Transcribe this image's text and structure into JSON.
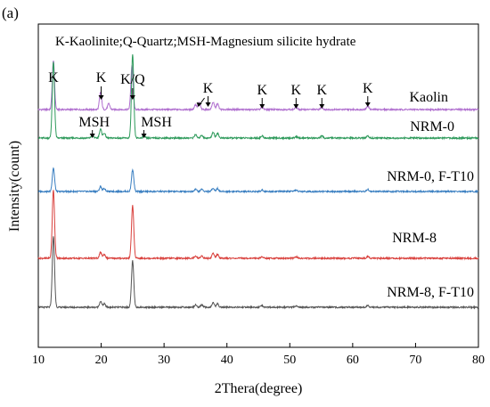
{
  "panel_label": "(a)",
  "chart_data": {
    "type": "line",
    "legend_text": "K-Kaolinite;Q-Quartz;MSH-Magnesium silicite hydrate",
    "xlabel": "2Thera(degree)",
    "ylabel": "Intensity(count)",
    "xlim": [
      10,
      80
    ],
    "xticks": [
      10,
      20,
      30,
      40,
      50,
      60,
      70,
      80
    ],
    "y_ticks_shown": false,
    "grid": false,
    "series": [
      {
        "name": "Kaolin",
        "color": "#b06fcf",
        "offset": 4.0,
        "base": 0.0,
        "peaks": [
          [
            12.4,
            1.0
          ],
          [
            19.9,
            0.35
          ],
          [
            21.2,
            0.12
          ],
          [
            24.9,
            0.9
          ],
          [
            35.0,
            0.1
          ],
          [
            35.6,
            0.14
          ],
          [
            37.8,
            0.15
          ],
          [
            38.5,
            0.12
          ],
          [
            45.6,
            0.05
          ],
          [
            51.0,
            0.05
          ],
          [
            55.1,
            0.05
          ],
          [
            62.4,
            0.07
          ]
        ]
      },
      {
        "name": "NRM-0",
        "color": "#2e9a5b",
        "offset": 3.0,
        "base": 0.0,
        "peaks": [
          [
            12.4,
            1.55
          ],
          [
            18.6,
            0.06
          ],
          [
            19.9,
            0.18
          ],
          [
            20.5,
            0.1
          ],
          [
            25.0,
            1.7
          ],
          [
            26.8,
            0.05
          ],
          [
            35.0,
            0.07
          ],
          [
            36.0,
            0.06
          ],
          [
            37.8,
            0.12
          ],
          [
            38.5,
            0.1
          ],
          [
            45.6,
            0.04
          ],
          [
            51.0,
            0.03
          ],
          [
            55.1,
            0.04
          ],
          [
            62.4,
            0.04
          ]
        ]
      },
      {
        "name": "NRM-0, F-T10",
        "color": "#3a7fc1",
        "offset": 2.0,
        "base": 0.0,
        "peaks": [
          [
            12.4,
            0.48
          ],
          [
            19.9,
            0.1
          ],
          [
            20.5,
            0.06
          ],
          [
            25.0,
            0.45
          ],
          [
            35.0,
            0.05
          ],
          [
            36.0,
            0.05
          ],
          [
            37.8,
            0.07
          ],
          [
            38.5,
            0.06
          ],
          [
            45.6,
            0.03
          ],
          [
            51.0,
            0.03
          ],
          [
            62.4,
            0.04
          ]
        ]
      },
      {
        "name": "NRM-8",
        "color": "#d9413d",
        "offset": 1.0,
        "base": 0.0,
        "peaks": [
          [
            12.4,
            1.4
          ],
          [
            19.9,
            0.12
          ],
          [
            20.5,
            0.08
          ],
          [
            25.0,
            1.08
          ],
          [
            35.0,
            0.05
          ],
          [
            36.0,
            0.05
          ],
          [
            37.8,
            0.1
          ],
          [
            38.5,
            0.08
          ],
          [
            45.6,
            0.03
          ],
          [
            51.0,
            0.03
          ],
          [
            62.4,
            0.04
          ]
        ]
      },
      {
        "name": "NRM-8, F-T10",
        "color": "#555555",
        "offset": 0.0,
        "base": 0.0,
        "peaks": [
          [
            12.4,
            1.45
          ],
          [
            19.9,
            0.12
          ],
          [
            20.5,
            0.07
          ],
          [
            25.0,
            0.95
          ],
          [
            35.0,
            0.05
          ],
          [
            36.0,
            0.05
          ],
          [
            37.8,
            0.09
          ],
          [
            38.5,
            0.07
          ],
          [
            45.6,
            0.03
          ],
          [
            51.0,
            0.03
          ],
          [
            62.4,
            0.04
          ]
        ]
      }
    ],
    "annotations": [
      {
        "text": "K",
        "x": 12.4
      },
      {
        "text": "K",
        "x": 20.0
      },
      {
        "text": "K/Q",
        "x": 25.0
      },
      {
        "text": "K",
        "x": 37.0
      },
      {
        "text": "K",
        "x": 45.6
      },
      {
        "text": "K",
        "x": 51.0
      },
      {
        "text": "K",
        "x": 55.1
      },
      {
        "text": "K",
        "x": 62.4
      },
      {
        "text": "MSH",
        "x": 18.6
      },
      {
        "text": "MSH",
        "x": 26.8
      }
    ]
  }
}
